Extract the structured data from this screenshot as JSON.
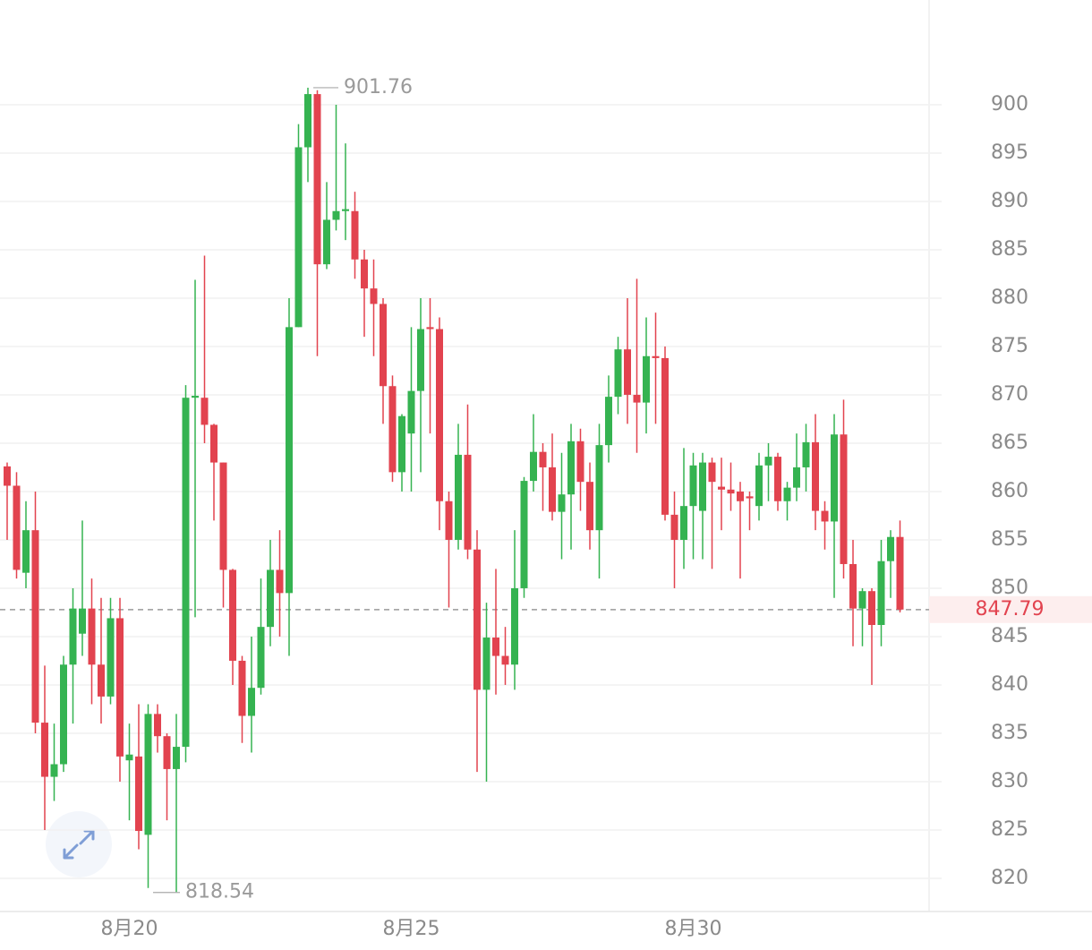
{
  "chart_data": {
    "type": "candlestick",
    "categories": [
      null,
      null,
      null,
      null,
      null,
      null,
      null,
      null,
      null,
      null,
      null,
      null,
      null,
      "8月20",
      null,
      null,
      null,
      null,
      null,
      null,
      null,
      null,
      null,
      null,
      null,
      null,
      null,
      null,
      null,
      null,
      null,
      null,
      null,
      null,
      null,
      null,
      null,
      null,
      null,
      null,
      null,
      null,
      null,
      "8月25",
      null,
      null,
      null,
      null,
      null,
      null,
      null,
      null,
      null,
      null,
      null,
      null,
      null,
      null,
      null,
      null,
      null,
      null,
      null,
      null,
      null,
      null,
      null,
      null,
      null,
      null,
      null,
      null,
      null,
      "8月30",
      null,
      null,
      null,
      null,
      null,
      null,
      null,
      null,
      null,
      null,
      null,
      null,
      null,
      null,
      null,
      null,
      null,
      null,
      null,
      null,
      null,
      null
    ],
    "open": [
      862.6,
      860.6,
      851.6,
      856,
      836.1,
      830.5,
      831.8,
      842.1,
      845.3,
      847.9,
      842.1,
      838.8,
      846.9,
      832.2,
      832.6,
      824.5,
      837,
      834.7,
      831.3,
      833.6,
      869.7,
      869.7,
      866.9,
      863,
      851.9,
      842.5,
      836.8,
      839.7,
      846,
      851.9,
      849.5,
      877,
      895.6,
      901.1,
      883.5,
      888.1,
      889,
      889,
      884,
      881,
      879.4,
      870.9,
      862,
      866,
      870.4,
      877,
      876.8,
      859,
      855,
      863.8,
      854,
      839.5,
      844.9,
      843,
      842.1,
      850,
      861.1,
      864.1,
      862.5,
      857.9,
      859.7,
      865.2,
      861,
      856,
      864.8,
      869.8,
      874.7,
      870,
      869.2,
      874,
      873.8,
      857.6,
      855,
      858.5,
      858,
      863,
      860.5,
      860.2,
      860,
      859.5,
      858.5,
      862.7,
      863.6,
      859,
      860.4,
      862.5,
      865.1,
      858,
      856.9,
      865.9,
      852.5,
      847.9,
      849.7,
      846.2,
      852.8,
      855.3
    ],
    "high": [
      863,
      862,
      859,
      860,
      842,
      836,
      843,
      850,
      857,
      851,
      849,
      849,
      849,
      836,
      838,
      838,
      838,
      835,
      837,
      871,
      881.9,
      884.4,
      867,
      863,
      852,
      843,
      845,
      851,
      855,
      856,
      880,
      898,
      901.76,
      901.5,
      892,
      900,
      896,
      891,
      885,
      884,
      880,
      872,
      868,
      877,
      880,
      880,
      878,
      860,
      867,
      869,
      856,
      848.5,
      852,
      846,
      856,
      861.5,
      868,
      865,
      866,
      864,
      867,
      866.5,
      863,
      867,
      872,
      876,
      880,
      882,
      878,
      878.5,
      875,
      860,
      864.5,
      864,
      864,
      863.5,
      863.5,
      863,
      861,
      860,
      864,
      865,
      864,
      861,
      866,
      867,
      868,
      859,
      868,
      869.5,
      855,
      850,
      850,
      855,
      856,
      857
    ],
    "low": [
      855,
      851,
      850,
      835,
      825,
      828,
      831,
      836,
      843,
      838,
      836,
      838,
      830,
      826,
      823,
      819,
      833,
      826,
      818.54,
      832,
      847,
      865,
      857,
      848,
      840,
      834,
      833,
      839,
      844,
      845,
      843,
      877,
      892,
      874,
      883,
      887,
      886,
      882,
      876,
      874,
      867,
      861,
      860,
      860,
      862,
      866,
      856,
      848,
      854,
      853,
      831,
      830,
      839,
      840,
      839.5,
      849,
      860,
      858,
      857,
      853,
      854,
      858,
      854,
      851,
      863,
      868,
      867,
      864,
      866,
      867,
      857,
      850,
      852,
      853,
      853,
      852,
      856,
      858,
      851,
      856,
      857,
      859,
      858,
      857,
      859,
      860,
      856,
      854,
      849,
      851,
      844,
      844,
      840,
      844,
      849,
      847.5
    ],
    "close": [
      860.6,
      851.9,
      856,
      836.1,
      830.5,
      831.8,
      842.1,
      847.9,
      847.9,
      842.1,
      838.8,
      846.9,
      832.6,
      832.8,
      824.9,
      837,
      834.7,
      831.3,
      833.6,
      869.7,
      869.9,
      866.9,
      863,
      851.9,
      842.5,
      836.8,
      839.7,
      846,
      851.9,
      849.5,
      877,
      895.6,
      901.1,
      883.5,
      888.1,
      889,
      889.2,
      884,
      881,
      879.4,
      870.9,
      862,
      867.8,
      870.4,
      876.8,
      876.8,
      859,
      855,
      863.8,
      854,
      839.5,
      844.9,
      843,
      842.1,
      850,
      861.1,
      864.1,
      862.5,
      857.9,
      859.7,
      865.2,
      861,
      856,
      864.8,
      869.8,
      874.7,
      870,
      869.2,
      874,
      873.8,
      857.6,
      855,
      858.5,
      862.7,
      863,
      861,
      860.2,
      859.8,
      859,
      859.3,
      862.7,
      863.6,
      859,
      860.4,
      862.5,
      865.1,
      858,
      856.9,
      865.9,
      852.5,
      847.9,
      849.7,
      846.2,
      852.8,
      855.3,
      847.79
    ],
    "up_color": "#35b351",
    "down_color": "#e2434f",
    "ylim": [
      816.57,
      910.83
    ],
    "yticks": [
      820,
      825,
      830,
      835,
      840,
      845,
      850,
      855,
      860,
      865,
      870,
      875,
      880,
      885,
      890,
      895,
      900
    ],
    "grid": true,
    "high_label": 901.76,
    "low_label": 818.54,
    "last_price": 847.79
  }
}
